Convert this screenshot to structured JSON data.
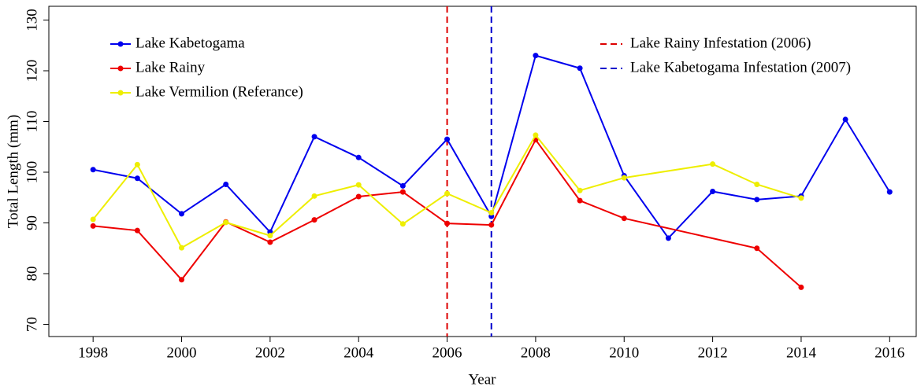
{
  "chart_data": {
    "type": "line",
    "xlabel": "Year",
    "ylabel": "Total Length (mm)",
    "xlim": [
      1997.0,
      2016.6
    ],
    "xticks": [
      1998,
      2000,
      2002,
      2004,
      2006,
      2008,
      2010,
      2012,
      2014,
      2016
    ],
    "ylim": [
      67.6,
      132.4
    ],
    "yticks": [
      70,
      80,
      90,
      100,
      110,
      120,
      130
    ],
    "series": [
      {
        "name": "Lake Kabetogama",
        "color": "#0000ee",
        "x": [
          1998,
          1999,
          2000,
          2001,
          2002,
          2003,
          2004,
          2005,
          2006,
          2007,
          2008,
          2009,
          2010,
          2011,
          2012,
          2013,
          2014,
          2015,
          2016
        ],
        "values": [
          100.5,
          98.8,
          91.8,
          97.6,
          88.2,
          107,
          102.9,
          97.3,
          106.5,
          91.3,
          123,
          120.5,
          99.3,
          87,
          96.2,
          94.6,
          95.3,
          110.4,
          96.1
        ]
      },
      {
        "name": "Lake Rainy",
        "color": "#ee0000",
        "x": [
          1998,
          1999,
          2000,
          2001,
          2002,
          2003,
          2004,
          2005,
          2006,
          2007,
          2008,
          2009,
          2010,
          2013,
          2014
        ],
        "values": [
          89.4,
          88.5,
          78.8,
          90.2,
          86.2,
          90.6,
          95.2,
          96.1,
          89.9,
          89.6,
          106.4,
          94.4,
          90.9,
          85,
          77.3
        ]
      },
      {
        "name": "Lake Vermilion (Referance)",
        "color": "#eeee00",
        "x": [
          1998,
          1999,
          2000,
          2001,
          2002,
          2003,
          2004,
          2005,
          2006,
          2007,
          2008,
          2009,
          2010,
          2012,
          2013,
          2014
        ],
        "values": [
          90.7,
          101.5,
          85.1,
          90.1,
          87.5,
          95.3,
          97.5,
          89.8,
          95.8,
          92,
          107.3,
          96.4,
          98.9,
          101.6,
          97.6,
          94.9
        ]
      }
    ],
    "vlines": [
      {
        "name": "Lake Rainy Infestation (2006)",
        "color": "#dd0000",
        "x": 2006
      },
      {
        "name": "Lake Kabetogama Infestation (2007)",
        "color": "#0000cc",
        "x": 2007
      }
    ]
  }
}
